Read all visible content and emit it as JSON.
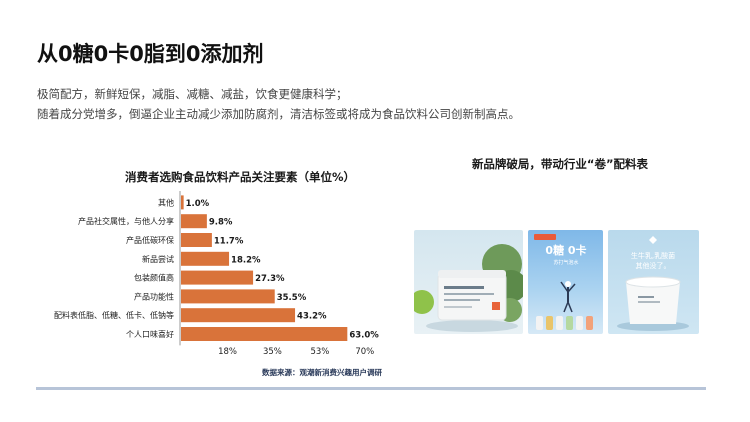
{
  "header": {
    "title": "从0糖0卡0脂到0添加剂",
    "desc_line1": "极简配方，新鲜短保，减脂、减糖、减盐，饮食更健康科学；",
    "desc_line2": "随着成分党增多，倒逼企业主动减少添加防腐剂，清洁标签或将成为食品饮料公司创新制高点。"
  },
  "chart_data": {
    "type": "bar",
    "orientation": "horizontal",
    "title": "消费者选购食品饮料产品关注要素（单位%）",
    "categories": [
      "其他",
      "产品社交属性，与他人分享",
      "产品低碳环保",
      "新品尝试",
      "包装颜值高",
      "产品功能性",
      "配料表低脂、低糖、低卡、低钠等",
      "个人口味喜好"
    ],
    "values": [
      1.0,
      9.8,
      11.7,
      18.2,
      27.3,
      35.5,
      43.2,
      63.0
    ],
    "value_labels": [
      "1.0%",
      "9.8%",
      "11.7%",
      "18.2%",
      "27.3%",
      "35.5%",
      "43.2%",
      "63.0%"
    ],
    "x_ticks": [
      "18%",
      "35%",
      "53%",
      "70%"
    ],
    "x_tick_values": [
      18,
      35,
      53,
      70
    ],
    "xlim": [
      0,
      70
    ],
    "bar_color": "#d9733a",
    "source": "数据来源：观潮新消费兴趣用户调研"
  },
  "right_panel": {
    "title": "新品牌破局，带动行业“卷”配料表",
    "products": [
      {
        "name": "yogurt-cup-product"
      },
      {
        "brand_tag": "元気森林",
        "headline": "0糖 0卡",
        "subline": "苏打气泡水"
      },
      {
        "headline": "生牛乳,乳酸菌",
        "subline": "其他没了。"
      }
    ]
  },
  "colors": {
    "accent": "#d9733a",
    "divider": "#b7c4d8"
  }
}
